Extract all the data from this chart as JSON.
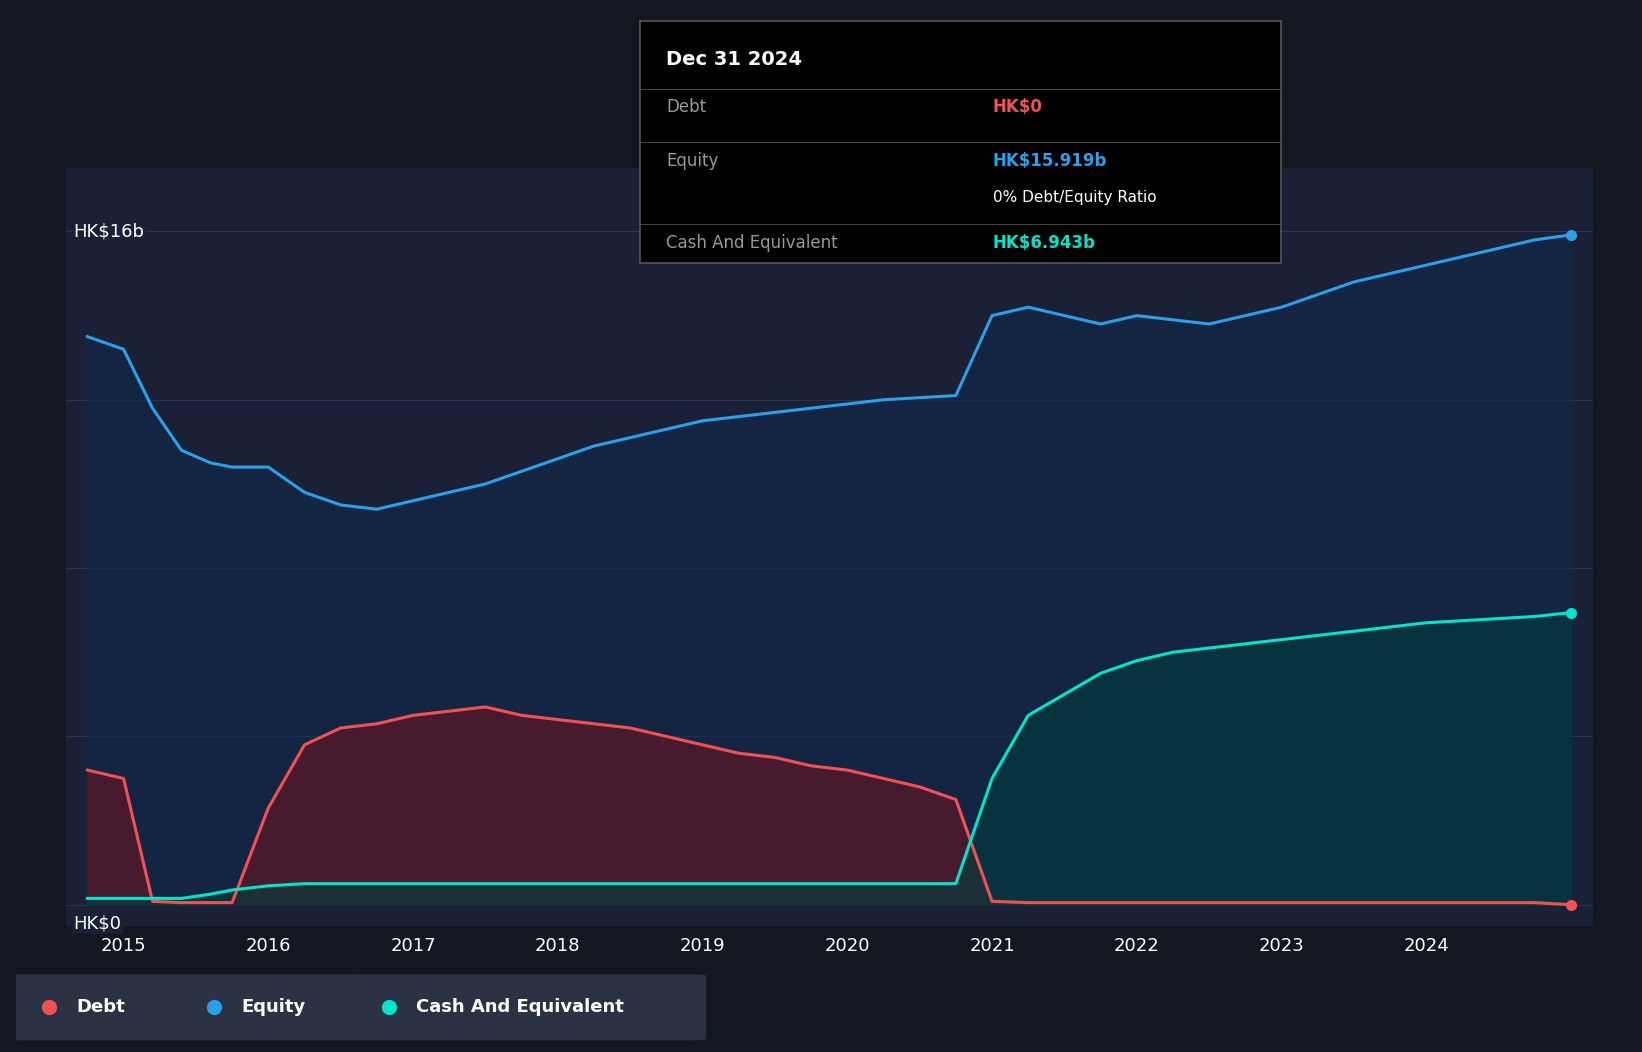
{
  "background_color": "#131722",
  "chart_area_color": "#1a2035",
  "grid_color": "#2a3a5c",
  "debt_color": "#f05155",
  "equity_color": "#2b9fe8",
  "cash_color": "#00e5cc",
  "debt_fill_color": "#6b1520",
  "equity_fill_color": "#0d2a50",
  "cash_fill_color": "#003d3d",
  "tooltip_title": "Dec 31 2024",
  "tooltip_debt_label": "Debt",
  "tooltip_debt_value": "HK$0",
  "tooltip_equity_label": "Equity",
  "tooltip_equity_value": "HK$15.919b",
  "tooltip_ratio": "0% Debt/Equity Ratio",
  "tooltip_cash_label": "Cash And Equivalent",
  "tooltip_cash_value": "HK$6.943b",
  "legend_debt": "Debt",
  "legend_equity": "Equity",
  "legend_cash": "Cash And Equivalent",
  "ylabel_hk16b": "HK$16b",
  "ylabel_hk0": "HK$0",
  "x_years": [
    2014.75,
    2015.0,
    2015.2,
    2015.4,
    2015.6,
    2015.75,
    2016.0,
    2016.25,
    2016.5,
    2016.75,
    2017.0,
    2017.25,
    2017.5,
    2017.75,
    2018.0,
    2018.25,
    2018.5,
    2018.75,
    2019.0,
    2019.25,
    2019.5,
    2019.75,
    2020.0,
    2020.25,
    2020.5,
    2020.75,
    2021.0,
    2021.25,
    2021.5,
    2021.75,
    2022.0,
    2022.25,
    2022.5,
    2022.75,
    2023.0,
    2023.25,
    2023.5,
    2023.75,
    2024.0,
    2024.25,
    2024.5,
    2024.75,
    2025.0
  ],
  "equity_values": [
    13.5,
    13.2,
    11.8,
    10.8,
    10.5,
    10.4,
    10.4,
    9.8,
    9.5,
    9.4,
    9.6,
    9.8,
    10.0,
    10.3,
    10.6,
    10.9,
    11.1,
    11.3,
    11.5,
    11.6,
    11.7,
    11.8,
    11.9,
    12.0,
    12.05,
    12.1,
    14.0,
    14.2,
    14.0,
    13.8,
    14.0,
    13.9,
    13.8,
    14.0,
    14.2,
    14.5,
    14.8,
    15.0,
    15.2,
    15.4,
    15.6,
    15.8,
    15.919
  ],
  "debt_values": [
    3.2,
    3.0,
    0.08,
    0.05,
    0.05,
    0.05,
    2.3,
    3.8,
    4.2,
    4.3,
    4.5,
    4.6,
    4.7,
    4.5,
    4.4,
    4.3,
    4.2,
    4.0,
    3.8,
    3.6,
    3.5,
    3.3,
    3.2,
    3.0,
    2.8,
    2.5,
    0.08,
    0.05,
    0.05,
    0.05,
    0.05,
    0.05,
    0.05,
    0.05,
    0.05,
    0.05,
    0.05,
    0.05,
    0.05,
    0.05,
    0.05,
    0.05,
    0.0
  ],
  "cash_values": [
    0.15,
    0.15,
    0.15,
    0.15,
    0.25,
    0.35,
    0.45,
    0.5,
    0.5,
    0.5,
    0.5,
    0.5,
    0.5,
    0.5,
    0.5,
    0.5,
    0.5,
    0.5,
    0.5,
    0.5,
    0.5,
    0.5,
    0.5,
    0.5,
    0.5,
    0.5,
    3.0,
    4.5,
    5.0,
    5.5,
    5.8,
    6.0,
    6.1,
    6.2,
    6.3,
    6.4,
    6.5,
    6.6,
    6.7,
    6.75,
    6.8,
    6.85,
    6.943
  ],
  "ylim_min": -0.5,
  "ylim_max": 17.5,
  "xmin": 2014.6,
  "xmax": 2025.15,
  "xticks": [
    2015,
    2016,
    2017,
    2018,
    2019,
    2020,
    2021,
    2022,
    2023,
    2024
  ],
  "grid_y_vals": [
    0,
    4,
    8,
    12,
    16
  ]
}
